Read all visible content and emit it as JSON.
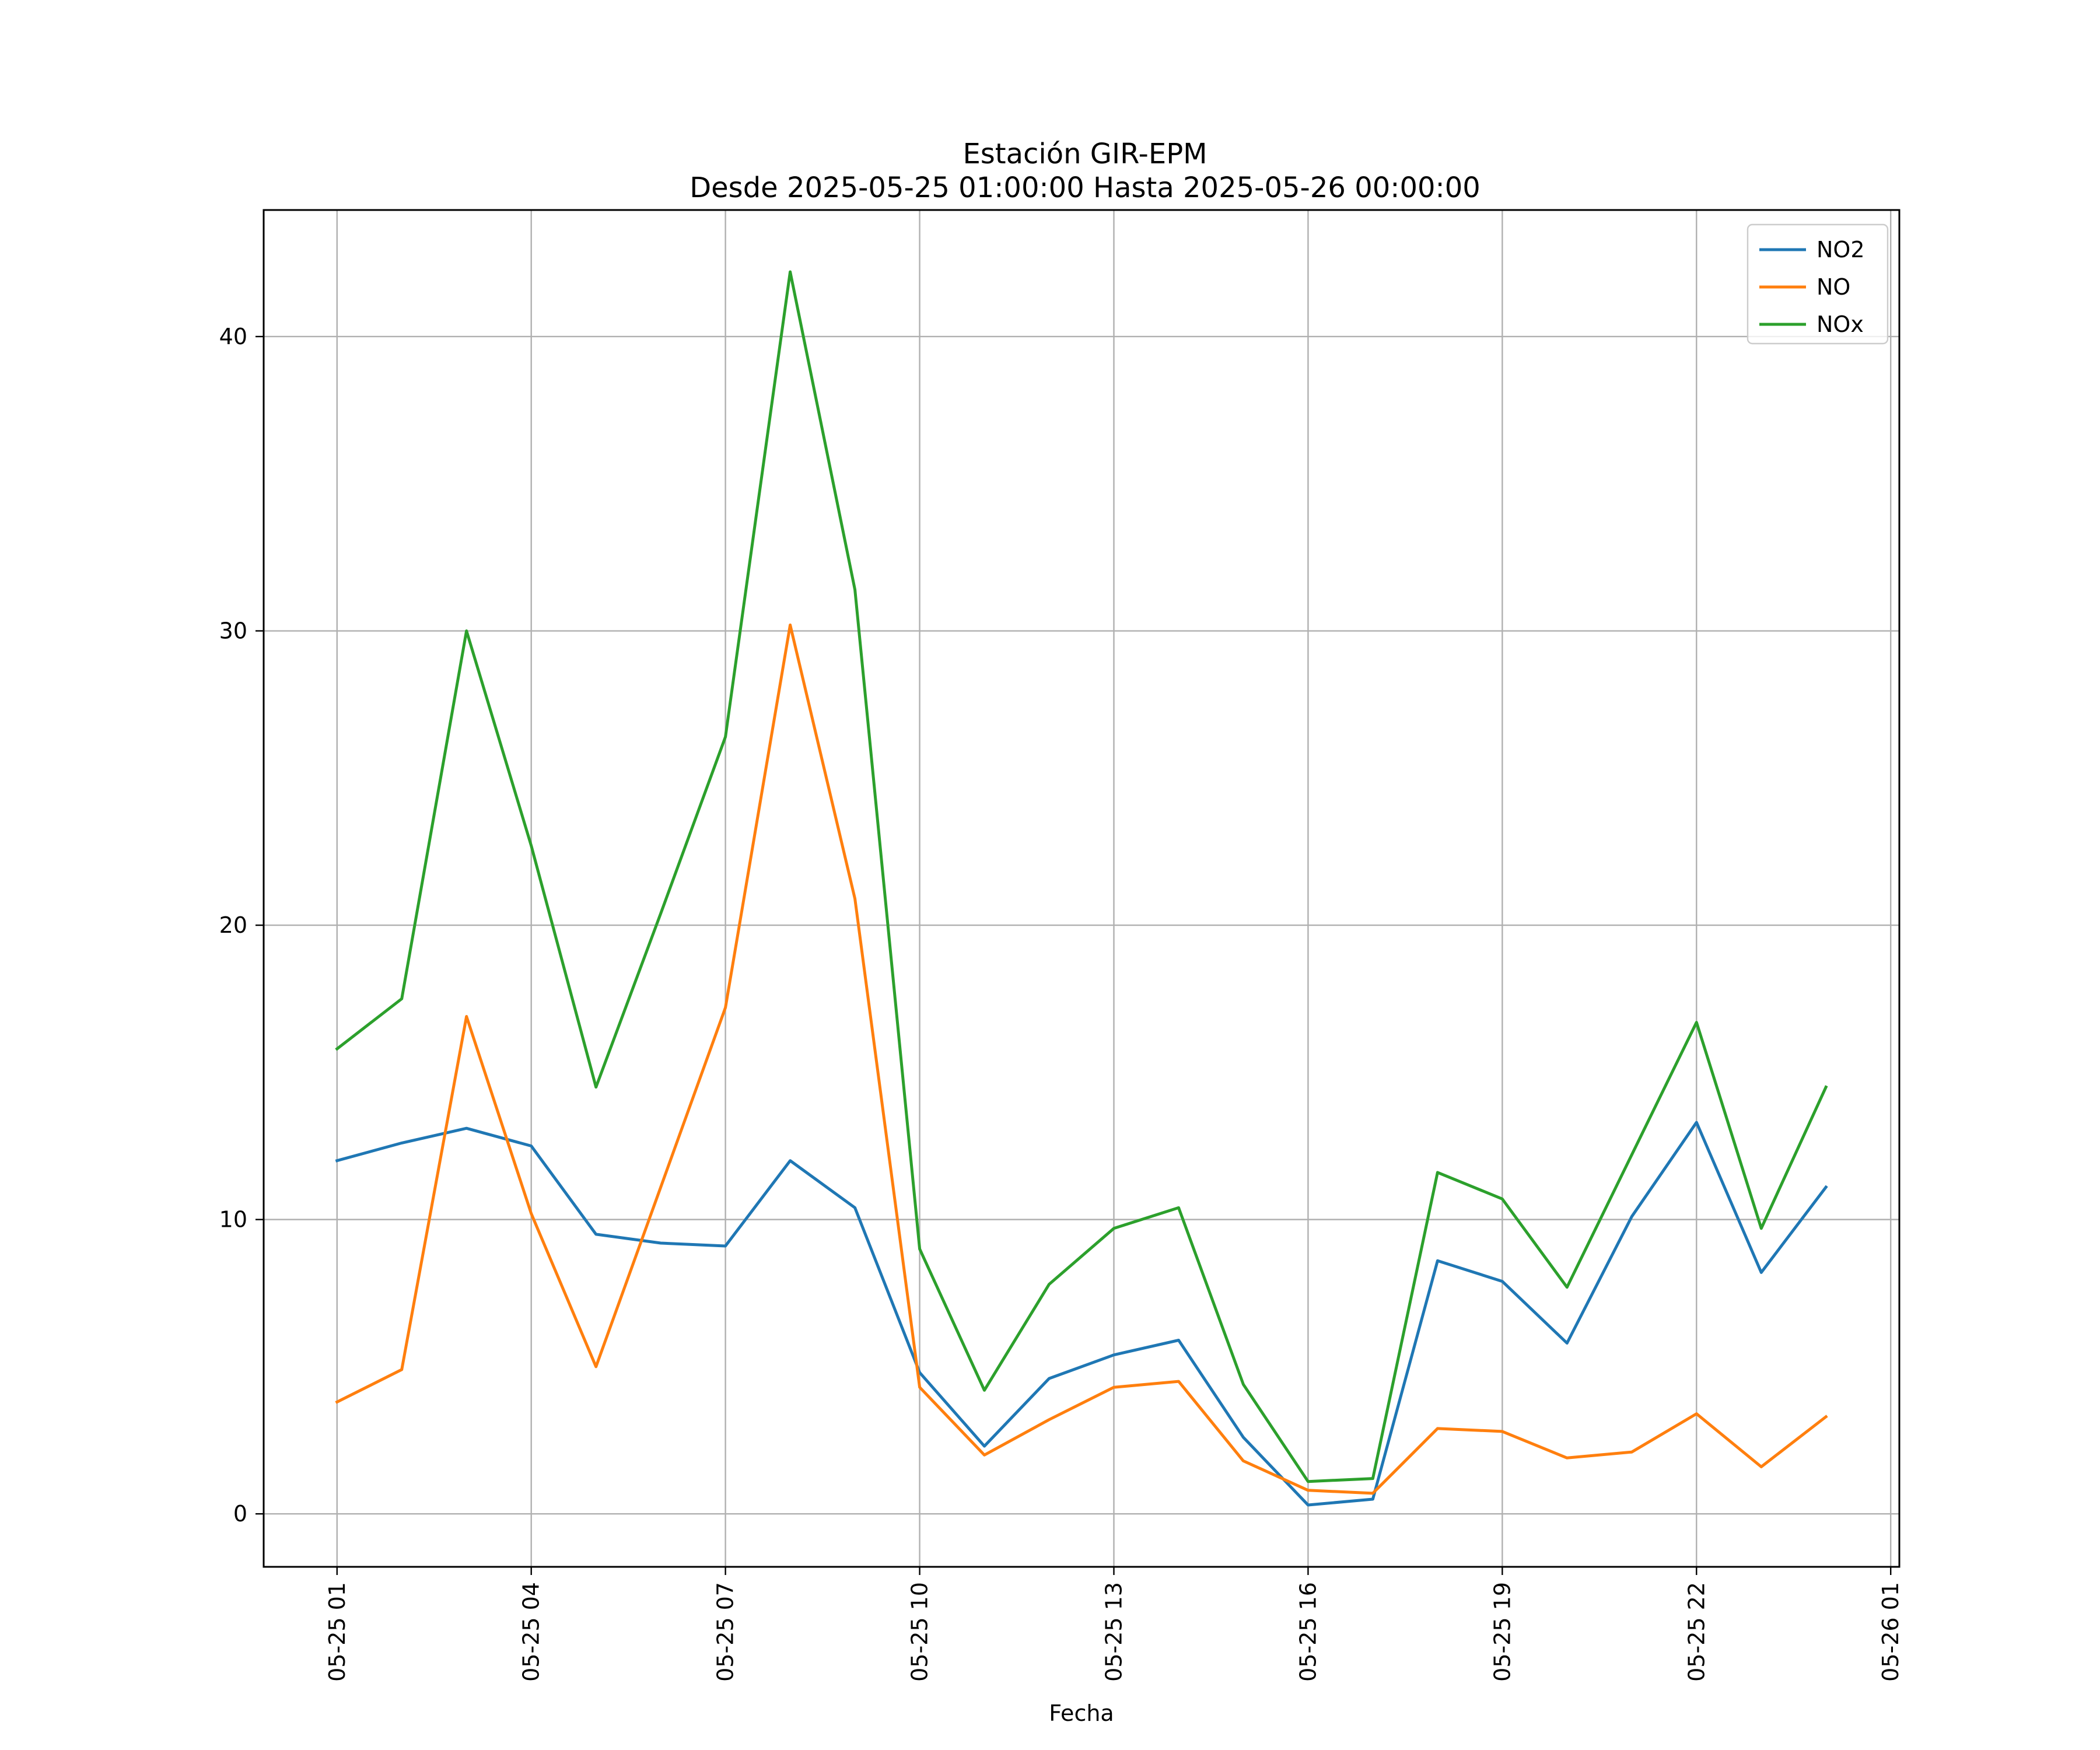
{
  "chart_data": {
    "type": "line",
    "title": "Estación GIR-EPM",
    "subtitle": "Desde 2025-05-25 01:00:00 Hasta 2025-05-26 00:00:00",
    "xlabel": "Fecha",
    "ylabel": "",
    "grid": true,
    "legend_position": "top-right",
    "x": [
      "2025-05-25 01:00",
      "2025-05-25 02:00",
      "2025-05-25 03:00",
      "2025-05-25 04:00",
      "2025-05-25 05:00",
      "2025-05-25 06:00",
      "2025-05-25 07:00",
      "2025-05-25 08:00",
      "2025-05-25 09:00",
      "2025-05-25 10:00",
      "2025-05-25 11:00",
      "2025-05-25 12:00",
      "2025-05-25 13:00",
      "2025-05-25 14:00",
      "2025-05-25 15:00",
      "2025-05-25 16:00",
      "2025-05-25 17:00",
      "2025-05-25 18:00",
      "2025-05-25 19:00",
      "2025-05-25 20:00",
      "2025-05-25 21:00",
      "2025-05-25 22:00",
      "2025-05-25 23:00",
      "2025-05-26 00:00"
    ],
    "x_ticks": [
      {
        "label": "05-25 01",
        "value": "2025-05-25 01:00"
      },
      {
        "label": "05-25 04",
        "value": "2025-05-25 04:00"
      },
      {
        "label": "05-25 07",
        "value": "2025-05-25 07:00"
      },
      {
        "label": "05-25 10",
        "value": "2025-05-25 10:00"
      },
      {
        "label": "05-25 13",
        "value": "2025-05-25 13:00"
      },
      {
        "label": "05-25 16",
        "value": "2025-05-25 16:00"
      },
      {
        "label": "05-25 19",
        "value": "2025-05-25 19:00"
      },
      {
        "label": "05-25 22",
        "value": "2025-05-25 22:00"
      },
      {
        "label": "05-26 01",
        "value": "2025-05-26 01:00"
      }
    ],
    "xlim": [
      "2025-05-24 23:52",
      "2025-05-26 01:08"
    ],
    "y_ticks": [
      0,
      10,
      20,
      30,
      40
    ],
    "ylim": [
      -1.8,
      44.3
    ],
    "series": [
      {
        "name": "NO2",
        "color": "#1f77b4",
        "values": [
          12.0,
          12.6,
          13.1,
          12.5,
          9.5,
          9.2,
          9.1,
          12.0,
          10.4,
          4.8,
          2.3,
          4.6,
          5.4,
          5.9,
          2.6,
          0.3,
          0.5,
          8.6,
          7.9,
          5.8,
          10.1,
          13.3,
          8.2,
          11.1
        ]
      },
      {
        "name": "NO",
        "color": "#ff7f0e",
        "values": [
          3.8,
          4.9,
          16.9,
          10.2,
          5.0,
          11.1,
          17.2,
          30.2,
          20.9,
          4.3,
          2.0,
          3.2,
          4.3,
          4.5,
          1.8,
          0.8,
          0.7,
          2.9,
          2.8,
          1.9,
          2.1,
          3.4,
          1.6,
          3.3
        ]
      },
      {
        "name": "NOx",
        "color": "#2ca02c",
        "values": [
          15.8,
          17.5,
          30.0,
          22.7,
          14.5,
          20.4,
          26.4,
          42.2,
          31.4,
          9.0,
          4.2,
          7.8,
          9.7,
          10.4,
          4.4,
          1.1,
          1.2,
          11.6,
          10.7,
          7.7,
          12.2,
          16.7,
          9.7,
          14.5
        ]
      }
    ]
  }
}
